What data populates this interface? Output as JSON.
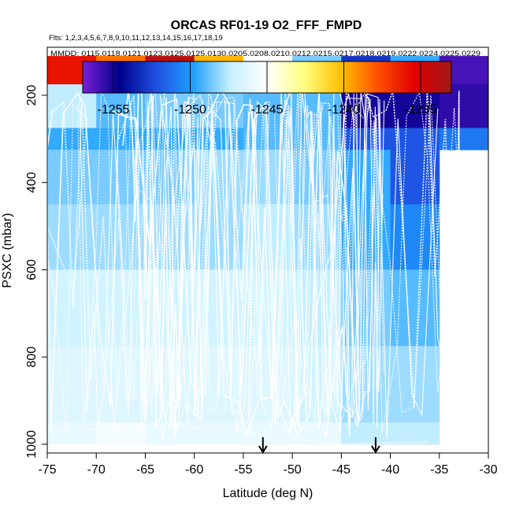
{
  "chart_data": {
    "type": "heatmap",
    "title": "ORCAS RF01-19 O2_FFF_FMPD",
    "subtitle_flights": "Flts: 1,2,3,4,5,6,7,8,9,10,11,12,13,14,15,16,17,18,19",
    "subtitle_dates": "MMDD: 0115,0118,0121,0123,0125,0125,0130,0205,0208,0210,0212,0215,0217,0218,0219,0222,0224,0225,0229",
    "xlabel": "Latitude (deg N)",
    "ylabel": "PSXC (mbar)",
    "xlim": [
      -75,
      -30
    ],
    "ylim": [
      1000,
      100
    ],
    "x_ticks": [
      -75,
      -70,
      -65,
      -60,
      -55,
      -50,
      -45,
      -40,
      -35,
      -30
    ],
    "y_ticks": [
      200,
      400,
      600,
      800,
      1000
    ],
    "colorbar": {
      "range": [
        -1257,
        -1233
      ],
      "ticks": [
        -1255,
        -1250,
        -1245,
        -1240,
        -1235
      ],
      "stops": [
        "#7a1fd6",
        "#00008b",
        "#1e4fe0",
        "#1ea0ff",
        "#c8f0ff",
        "#ffffff",
        "#ffff80",
        "#ffc000",
        "#ff5000",
        "#e00000",
        "#a01818"
      ]
    },
    "x_bins": [
      -75,
      -70,
      -65,
      -60,
      -55,
      -50,
      -45,
      -40,
      -35
    ],
    "p_bins": [
      100,
      175,
      275,
      325,
      450,
      600,
      775,
      950,
      1000
    ],
    "cells": [
      [
        -1236.0,
        -1238.5,
        -1234.0,
        -1240.0,
        -1245.0,
        -1248.5,
        -1253.0,
        -1249.5,
        -1256.0
      ],
      [
        -1247.5,
        -1249.0,
        -1248.5,
        -1248.5,
        -1249.0,
        -1249.0,
        -1255.0,
        -1255.0,
        -1255.5
      ],
      [
        -1249.5,
        -1249.5,
        -1249.5,
        -1249.5,
        -1249.0,
        -1249.0,
        -1252.0,
        -1252.0,
        -1251.0
      ],
      [
        -1248.5,
        -1248.5,
        -1248.5,
        -1248.0,
        -1248.0,
        -1248.5,
        -1249.5,
        -1252.0,
        null
      ],
      [
        -1248.0,
        -1248.0,
        -1248.0,
        -1248.0,
        -1247.5,
        -1248.0,
        -1249.5,
        -1250.5,
        null
      ],
      [
        -1247.0,
        -1247.0,
        -1247.0,
        -1247.0,
        -1247.0,
        -1247.5,
        -1248.5,
        -1249.0,
        null
      ],
      [
        -1246.5,
        -1246.5,
        -1246.5,
        -1246.5,
        -1246.5,
        -1247.0,
        -1248.0,
        -1248.0,
        null
      ],
      [
        -1246.0,
        -1245.5,
        -1246.0,
        -1246.0,
        -1246.0,
        -1246.0,
        -1247.5,
        -1247.5,
        null
      ]
    ],
    "arrow_markers_lat": [
      -53.0,
      -41.5
    ]
  }
}
